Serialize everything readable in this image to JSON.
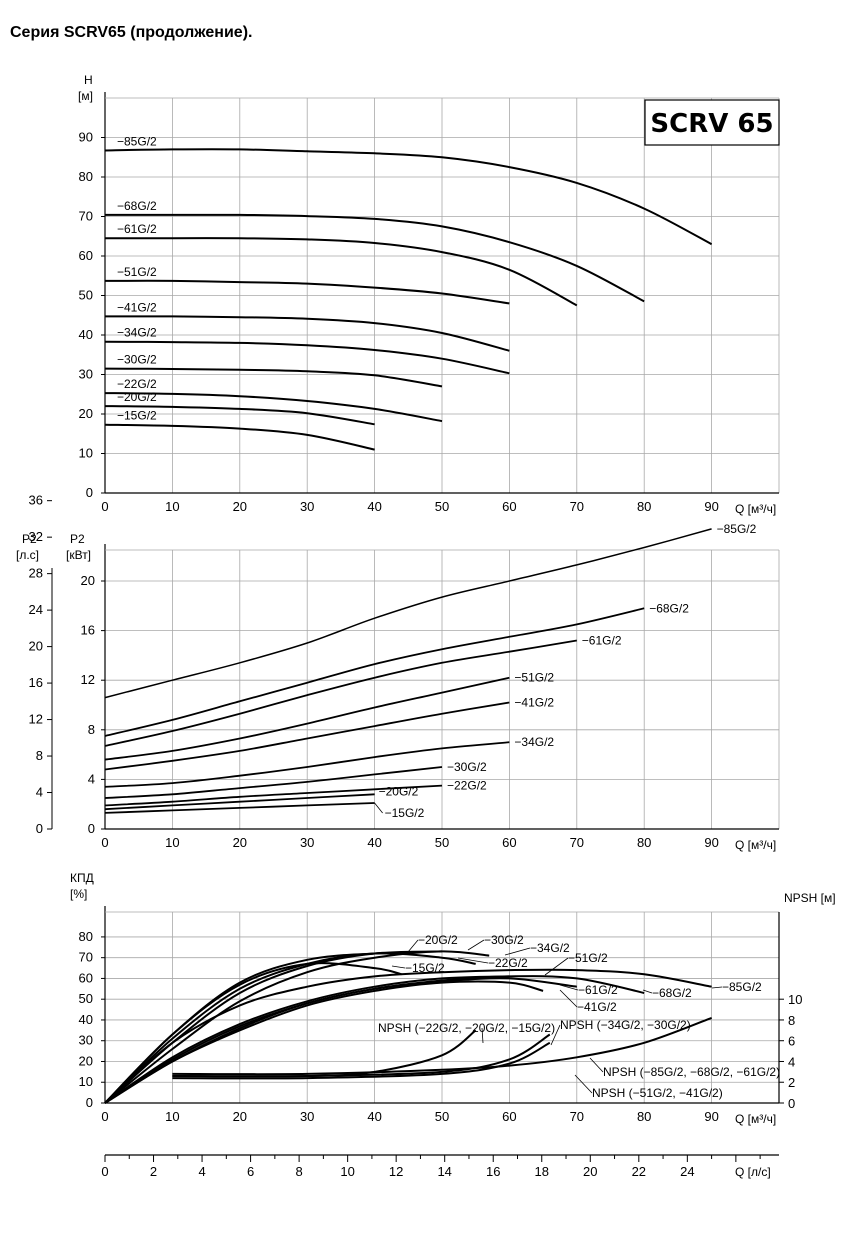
{
  "page_title": "Серия SCRV65 (продолжение).",
  "badge": "SCRV 65",
  "chart_data": [
    {
      "type": "line",
      "id": "head",
      "ylabel": "H",
      "yunit": "[м]",
      "xlabel": "Q [м³/ч]",
      "xlim": [
        0,
        100
      ],
      "ylim": [
        0,
        100
      ],
      "x_ticks": [
        0,
        10,
        20,
        30,
        40,
        50,
        60,
        70,
        80,
        90
      ],
      "y_ticks": [
        0,
        10,
        20,
        30,
        40,
        50,
        60,
        70,
        80,
        90
      ],
      "grid": true,
      "series": [
        {
          "name": "−85G/2",
          "x": [
            0,
            10,
            20,
            30,
            40,
            50,
            60,
            70,
            80,
            90
          ],
          "y": [
            86.7,
            87,
            87,
            86.5,
            86,
            85,
            82.5,
            78.5,
            72,
            63
          ]
        },
        {
          "name": "−68G/2",
          "x": [
            0,
            10,
            20,
            30,
            40,
            50,
            60,
            70,
            80
          ],
          "y": [
            70.4,
            70.4,
            70.4,
            70.1,
            69.4,
            67.5,
            63.5,
            57.5,
            48.5
          ]
        },
        {
          "name": "−61G/2",
          "x": [
            0,
            10,
            20,
            30,
            40,
            50,
            60,
            70
          ],
          "y": [
            64.5,
            64.5,
            64.5,
            64.2,
            63.3,
            61,
            56.5,
            47.5
          ]
        },
        {
          "name": "−51G/2",
          "x": [
            0,
            10,
            20,
            30,
            40,
            50,
            60
          ],
          "y": [
            53.7,
            53.7,
            53.4,
            53,
            52,
            50.5,
            48
          ]
        },
        {
          "name": "−41G/2",
          "x": [
            0,
            10,
            20,
            30,
            40,
            50,
            60
          ],
          "y": [
            44.7,
            44.7,
            44.5,
            44.1,
            43,
            40.5,
            36
          ]
        },
        {
          "name": "−34G/2",
          "x": [
            0,
            10,
            20,
            30,
            40,
            50,
            60
          ],
          "y": [
            38.3,
            38.2,
            38,
            37.4,
            36.2,
            34,
            30.3
          ]
        },
        {
          "name": "−30G/2",
          "x": [
            0,
            10,
            20,
            30,
            40,
            50
          ],
          "y": [
            31.5,
            31.4,
            31.2,
            30.8,
            29.8,
            27
          ]
        },
        {
          "name": "−22G/2",
          "x": [
            0,
            10,
            20,
            30,
            40,
            50
          ],
          "y": [
            25.3,
            25.1,
            24.5,
            23.3,
            21.3,
            18.2
          ]
        },
        {
          "name": "−20G/2",
          "x": [
            0,
            10,
            20,
            30,
            40
          ],
          "y": [
            22,
            21.8,
            21.3,
            20.2,
            17.4
          ]
        },
        {
          "name": "−15G/2",
          "x": [
            0,
            10,
            20,
            30,
            40
          ],
          "y": [
            17.3,
            17,
            16.3,
            14.7,
            11
          ]
        }
      ]
    },
    {
      "type": "line",
      "id": "power",
      "ylabel": "P2",
      "yunit": "[кВт]",
      "ylabel_hp": "P2",
      "yunit_hp": "[л.с]",
      "xlabel": "Q [м³/ч]",
      "xlim": [
        0,
        100
      ],
      "ylim": [
        0,
        22.5
      ],
      "x_ticks": [
        0,
        10,
        20,
        30,
        40,
        50,
        60,
        70,
        80,
        90
      ],
      "y_ticks": [
        0,
        4,
        8,
        12,
        16,
        20
      ],
      "y_ticks_hp": [
        0,
        4,
        8,
        12,
        16,
        20,
        24,
        28,
        32,
        36
      ],
      "grid": true,
      "series": [
        {
          "name": "−85G/2",
          "x": [
            0,
            10,
            20,
            30,
            40,
            50,
            60,
            70,
            80,
            90
          ],
          "y": [
            10.6,
            12,
            13.4,
            15,
            17,
            18.7,
            20,
            21.3,
            22.7,
            24.2
          ]
        },
        {
          "name": "−68G/2",
          "x": [
            0,
            10,
            20,
            30,
            40,
            50,
            60,
            70,
            80
          ],
          "y": [
            7.5,
            8.8,
            10.3,
            11.8,
            13.3,
            14.5,
            15.5,
            16.5,
            17.8
          ]
        },
        {
          "name": "−61G/2",
          "x": [
            0,
            10,
            20,
            30,
            40,
            50,
            60,
            70
          ],
          "y": [
            6.7,
            7.9,
            9.3,
            10.8,
            12.2,
            13.4,
            14.3,
            15.2
          ]
        },
        {
          "name": "−51G/2",
          "x": [
            0,
            10,
            20,
            30,
            40,
            50,
            60
          ],
          "y": [
            5.6,
            6.3,
            7.3,
            8.5,
            9.8,
            11,
            12.2
          ]
        },
        {
          "name": "−41G/2",
          "x": [
            0,
            10,
            20,
            30,
            40,
            50,
            60
          ],
          "y": [
            4.8,
            5.5,
            6.3,
            7.3,
            8.3,
            9.3,
            10.2
          ]
        },
        {
          "name": "−34G/2",
          "x": [
            0,
            10,
            20,
            30,
            40,
            50,
            60
          ],
          "y": [
            3.4,
            3.7,
            4.3,
            5,
            5.8,
            6.5,
            7
          ]
        },
        {
          "name": "−30G/2",
          "x": [
            0,
            10,
            20,
            30,
            40,
            50
          ],
          "y": [
            2.5,
            2.8,
            3.3,
            3.8,
            4.4,
            5
          ]
        },
        {
          "name": "−22G/2",
          "x": [
            0,
            10,
            20,
            30,
            40,
            50
          ],
          "y": [
            1.9,
            2.2,
            2.6,
            2.9,
            3.2,
            3.5
          ]
        },
        {
          "name": "−20G/2",
          "x": [
            0,
            10,
            20,
            30,
            40
          ],
          "y": [
            1.6,
            1.9,
            2.2,
            2.5,
            2.8
          ]
        },
        {
          "name": "−15G/2",
          "x": [
            0,
            10,
            20,
            30,
            40
          ],
          "y": [
            1.3,
            1.5,
            1.7,
            1.9,
            2.1
          ]
        }
      ]
    },
    {
      "type": "line",
      "id": "efficiency_npsh",
      "ylabel": "КПД",
      "yunit": "[%]",
      "ylabel_right": "NPSH [м]",
      "xlabel": "Q [м³/ч]",
      "xlabel_secondary": "Q [л/с]",
      "xlim": [
        0,
        100
      ],
      "ylim": [
        0,
        92
      ],
      "ylim_right": [
        0,
        18.4
      ],
      "x_ticks": [
        0,
        10,
        20,
        30,
        40,
        50,
        60,
        70,
        80,
        90
      ],
      "x_ticks_secondary": [
        0,
        2,
        4,
        6,
        8,
        10,
        12,
        14,
        16,
        18,
        20,
        22,
        24
      ],
      "y_ticks": [
        0,
        10,
        20,
        30,
        40,
        50,
        60,
        70,
        80
      ],
      "y_ticks_right": [
        0,
        2,
        4,
        6,
        8,
        10
      ],
      "grid": true,
      "series": [
        {
          "name": "−85G/2",
          "x": [
            0,
            10,
            20,
            30,
            40,
            50,
            60,
            70,
            80,
            90
          ],
          "y": [
            0,
            29,
            47,
            56,
            61,
            63,
            64,
            64,
            62,
            56
          ]
        },
        {
          "name": "−68G/2",
          "x": [
            0,
            10,
            20,
            30,
            40,
            50,
            60,
            70,
            80
          ],
          "y": [
            0,
            20,
            36,
            48,
            55,
            59,
            61,
            60,
            53
          ]
        },
        {
          "name": "−61G/2",
          "x": [
            0,
            10,
            20,
            30,
            40,
            50,
            60,
            70
          ],
          "y": [
            0,
            21,
            37,
            48,
            55,
            58.5,
            60,
            56
          ]
        },
        {
          "name": "−51G/2",
          "x": [
            0,
            10,
            20,
            30,
            40,
            50,
            60
          ],
          "y": [
            0,
            22,
            38,
            49,
            56,
            60,
            61
          ]
        },
        {
          "name": "−41G/2",
          "x": [
            0,
            10,
            20,
            30,
            40,
            50,
            60,
            65
          ],
          "y": [
            0,
            20,
            35,
            47,
            54,
            58,
            58,
            54
          ]
        },
        {
          "name": "−34G/2",
          "x": [
            0,
            10,
            20,
            30,
            40,
            50,
            57
          ],
          "y": [
            0,
            26,
            49,
            63,
            70,
            73,
            71
          ]
        },
        {
          "name": "−30G/2",
          "x": [
            0,
            10,
            20,
            30,
            40,
            50
          ],
          "y": [
            0,
            29,
            53,
            66,
            72,
            73
          ]
        },
        {
          "name": "−22G/2",
          "x": [
            0,
            10,
            20,
            30,
            40,
            50,
            55
          ],
          "y": [
            0,
            31,
            55,
            67,
            72,
            70,
            67
          ]
        },
        {
          "name": "−20G/2",
          "x": [
            0,
            10,
            20,
            30,
            40,
            45
          ],
          "y": [
            0,
            33,
            58,
            69,
            72,
            72
          ]
        },
        {
          "name": "−15G/2",
          "x": [
            0,
            10,
            20,
            30,
            40,
            44
          ],
          "y": [
            0,
            33,
            57,
            67,
            65,
            62
          ]
        }
      ],
      "npsh_series": [
        {
          "name": "NPSH (−85G/2, −68G/2, −61G/2)",
          "x": [
            10,
            30,
            50,
            60,
            70,
            80,
            90
          ],
          "y": [
            2.8,
            2.8,
            3.2,
            3.6,
            4.4,
            5.8,
            8.2
          ]
        },
        {
          "name": "NPSH (−51G/2, −41G/2)",
          "x": [
            10,
            30,
            50,
            60,
            66
          ],
          "y": [
            2.4,
            2.4,
            2.8,
            3.8,
            5.8
          ]
        },
        {
          "name": "NPSH (−34G/2, −30G/2)",
          "x": [
            10,
            30,
            50,
            60,
            66
          ],
          "y": [
            2.6,
            2.6,
            3,
            4.2,
            6.6
          ]
        },
        {
          "name": "NPSH (−22G/2, −20G/2, −15G/2)",
          "x": [
            10,
            30,
            40,
            50,
            55
          ],
          "y": [
            2.6,
            2.6,
            3,
            4.6,
            7
          ]
        }
      ]
    }
  ]
}
